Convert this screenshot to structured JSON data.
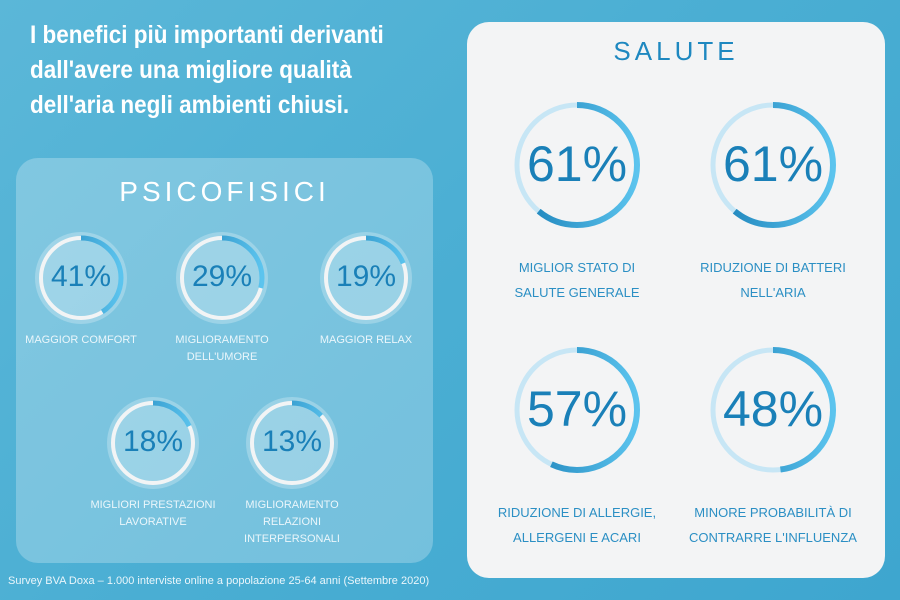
{
  "title": "I benefici più importanti derivanti dall'avere una migliore qualità dell'aria negli ambienti chiusi.",
  "footer": "Survey BVA Doxa – 1.000 interviste online a popolazione 25-64 anni (Settembre 2020)",
  "colors": {
    "arc": "#1a80b8",
    "arc_light": "#5cc4ee",
    "ring_left": "#f2f4f5",
    "ring_right": "#c7e6f5"
  },
  "chart_data": [
    {
      "type": "pie",
      "title": "PSICOFISICI",
      "unit": "%",
      "categories": [
        "MAGGIOR COMFORT",
        "MIGLIORAMENTO DELL'UMORE",
        "MAGGIOR RELAX",
        "MIGLIORI PRESTAZIONI LAVORATIVE",
        "MIGLIORAMENTO RELAZIONI INTERPERSONALI"
      ],
      "label_lines": [
        [
          "MAGGIOR COMFORT"
        ],
        [
          "MIGLIORAMENTO",
          "DELL'UMORE"
        ],
        [
          "MAGGIOR RELAX"
        ],
        [
          "MIGLIORI PRESTAZIONI",
          "LAVORATIVE"
        ],
        [
          "MIGLIORAMENTO RELAZIONI",
          "INTERPERSONALI"
        ]
      ],
      "values": [
        41,
        29,
        19,
        18,
        13
      ],
      "value_labels": [
        "41%",
        "29%",
        "19%",
        "18%",
        "13%"
      ]
    },
    {
      "type": "pie",
      "title": "SALUTE",
      "unit": "%",
      "categories": [
        "MIGLIOR STATO DI SALUTE GENERALE",
        "RIDUZIONE DI BATTERI NELL'ARIA",
        "RIDUZIONE DI ALLERGIE, ALLERGENI E ACARI",
        "MINORE PROBABILITÀ DI CONTRARRE L'INFLUENZA"
      ],
      "label_lines": [
        [
          "MIGLIOR STATO DI",
          "SALUTE GENERALE"
        ],
        [
          "RIDUZIONE DI BATTERI",
          "NELL'ARIA"
        ],
        [
          "RIDUZIONE DI ALLERGIE,",
          "ALLERGENI E ACARI"
        ],
        [
          "MINORE PROBABILITÀ DI",
          "CONTRARRE L'INFLUENZA"
        ]
      ],
      "values": [
        61,
        61,
        57,
        48
      ],
      "value_labels": [
        "61%",
        "61%",
        "57%",
        "48%"
      ]
    }
  ]
}
